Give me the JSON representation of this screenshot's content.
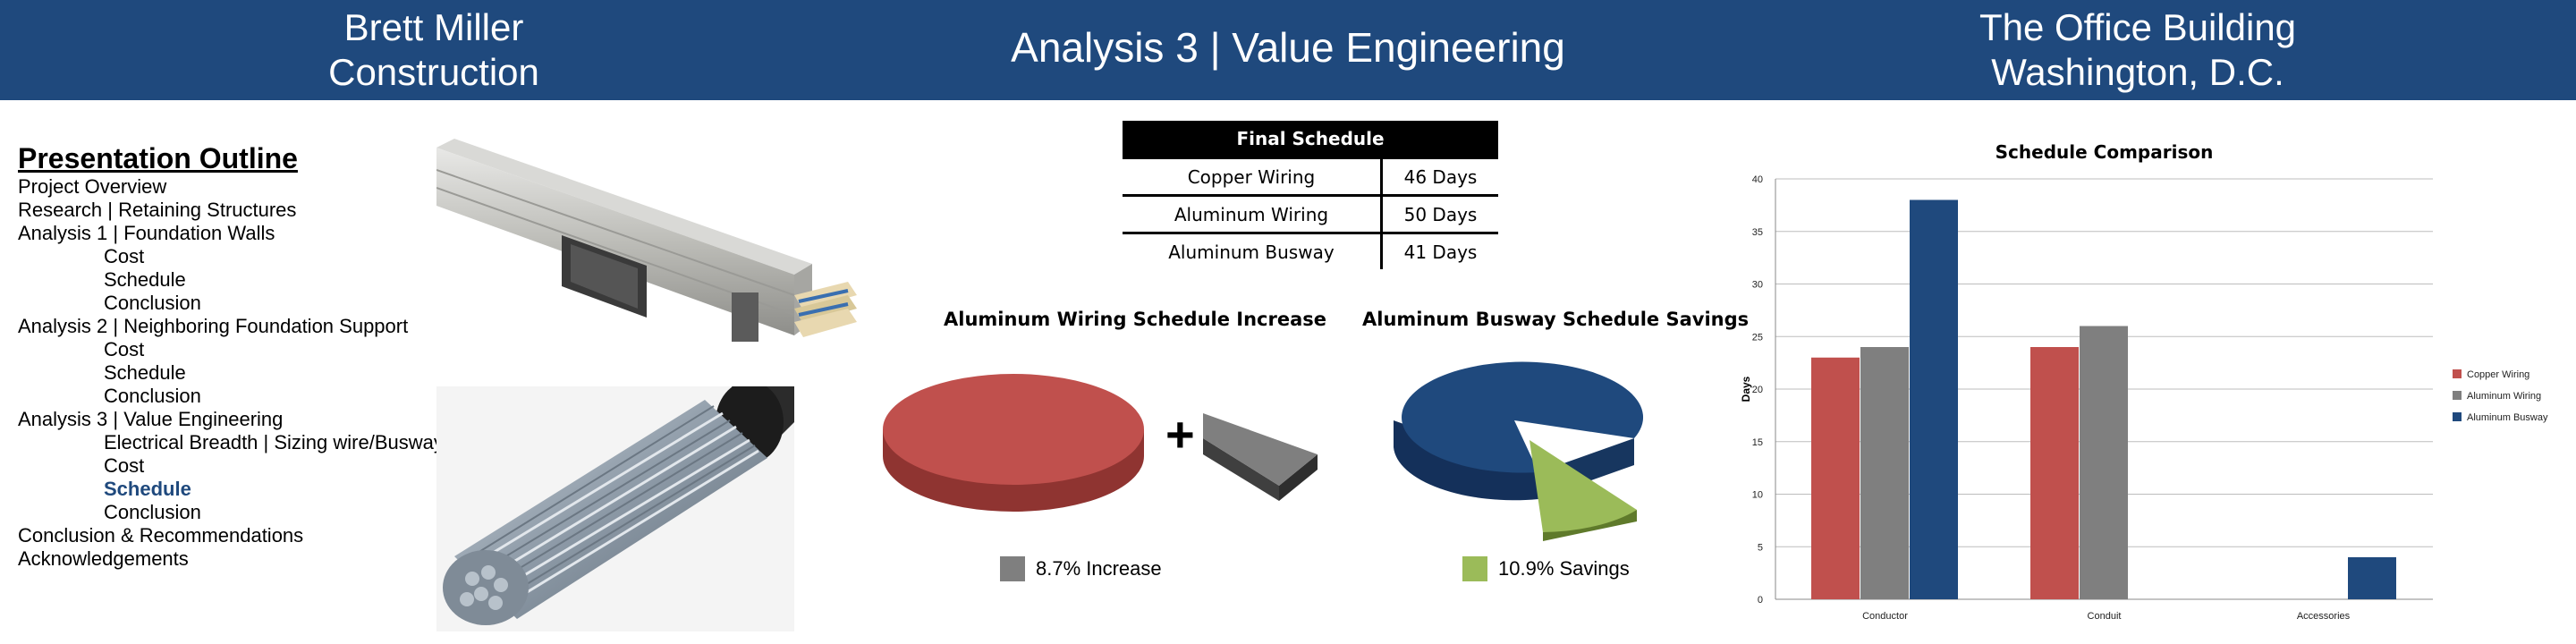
{
  "header": {
    "left_line1": "Brett Miller",
    "left_line2": "Construction",
    "center": "Analysis 3 | Value Engineering",
    "right_line1": "The Office Building",
    "right_line2": "Washington, D.C."
  },
  "outline": {
    "title": "Presentation Outline",
    "items": [
      "Project Overview",
      "Research | Retaining Structures",
      "Analysis 1 | Foundation Walls",
      "Cost",
      "Schedule",
      "Conclusion",
      "Analysis 2 | Neighboring Foundation Support",
      "Cost",
      "Schedule",
      "Conclusion",
      "Analysis 3 | Value Engineering",
      "Electrical Breadth | Sizing wire/Busway",
      "Cost",
      "Schedule",
      "Conclusion",
      "Conclusion & Recommendations",
      "Acknowledgements"
    ]
  },
  "images": {
    "busway_photo": "busway-photo",
    "cable_photo": "aluminum-cable-photo"
  },
  "final_schedule": {
    "title": "Final Schedule",
    "rows": [
      [
        "Copper Wiring",
        "46 Days"
      ],
      [
        "Aluminum Wiring",
        "50 Days"
      ],
      [
        "Aluminum Busway",
        "41 Days"
      ]
    ]
  },
  "pie_left": {
    "title": "Aluminum Wiring Schedule Increase",
    "plus": "+",
    "legend": "8.7% Increase",
    "percent": 8.7,
    "colors": {
      "main": "#c0504d",
      "slice": "#7f7f7f"
    }
  },
  "pie_right": {
    "title": "Aluminum Busway Schedule Savings",
    "legend": "10.9% Savings",
    "percent": 10.9,
    "colors": {
      "main": "#1f497d",
      "slice": "#9bbb59"
    }
  },
  "chart_data": {
    "type": "bar",
    "title": "Schedule Comparison",
    "ylabel": "Days",
    "xlabel": "",
    "categories": [
      "Conductor",
      "Conduit",
      "Accessories"
    ],
    "ylim": [
      0,
      40
    ],
    "yticks": [
      0,
      5,
      10,
      15,
      20,
      25,
      30,
      35,
      40
    ],
    "grid": true,
    "legend_position": "right",
    "series": [
      {
        "name": "Copper Wiring",
        "color": "#c0504d",
        "values": [
          23,
          24,
          null
        ]
      },
      {
        "name": "Aluminum Wiring",
        "color": "#7f7f7f",
        "values": [
          24,
          26,
          null
        ]
      },
      {
        "name": "Aluminum Busway",
        "color": "#1f497d",
        "values": [
          38,
          null,
          4
        ]
      }
    ]
  }
}
